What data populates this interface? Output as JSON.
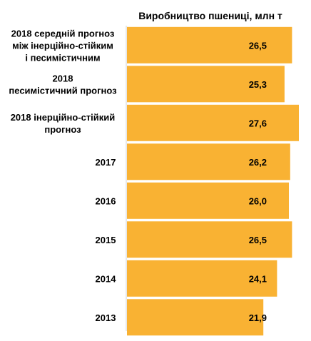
{
  "chart_data": {
    "type": "bar",
    "orientation": "horizontal",
    "title": "Виробництво пшениці, млн т",
    "categories": [
      "2018 середній прогноз між інерційно-стійким і песимістичним",
      "2018 песимістичний прогноз",
      "2018 інерційно-стійкий прогноз",
      "2017",
      "2016",
      "2015",
      "2014",
      "2013"
    ],
    "category_lines": [
      [
        "2018 середній прогноз",
        "між інерційно-стійким",
        "і песимістичним"
      ],
      [
        "2018",
        "песимістичний прогноз"
      ],
      [
        "2018 інерційно-стійкий",
        "прогноз"
      ],
      [
        "2017"
      ],
      [
        "2016"
      ],
      [
        "2015"
      ],
      [
        "2014"
      ],
      [
        "2013"
      ]
    ],
    "values": [
      26.5,
      25.3,
      27.6,
      26.2,
      26.0,
      26.5,
      24.1,
      21.9
    ],
    "value_labels": [
      "26,5",
      "25,3",
      "27,6",
      "26,2",
      "26,0",
      "26,5",
      "24,1",
      "21,9"
    ],
    "xlim": [
      0,
      27.6
    ],
    "bar_color": "#F9B233",
    "grid": false,
    "legend": "none"
  }
}
